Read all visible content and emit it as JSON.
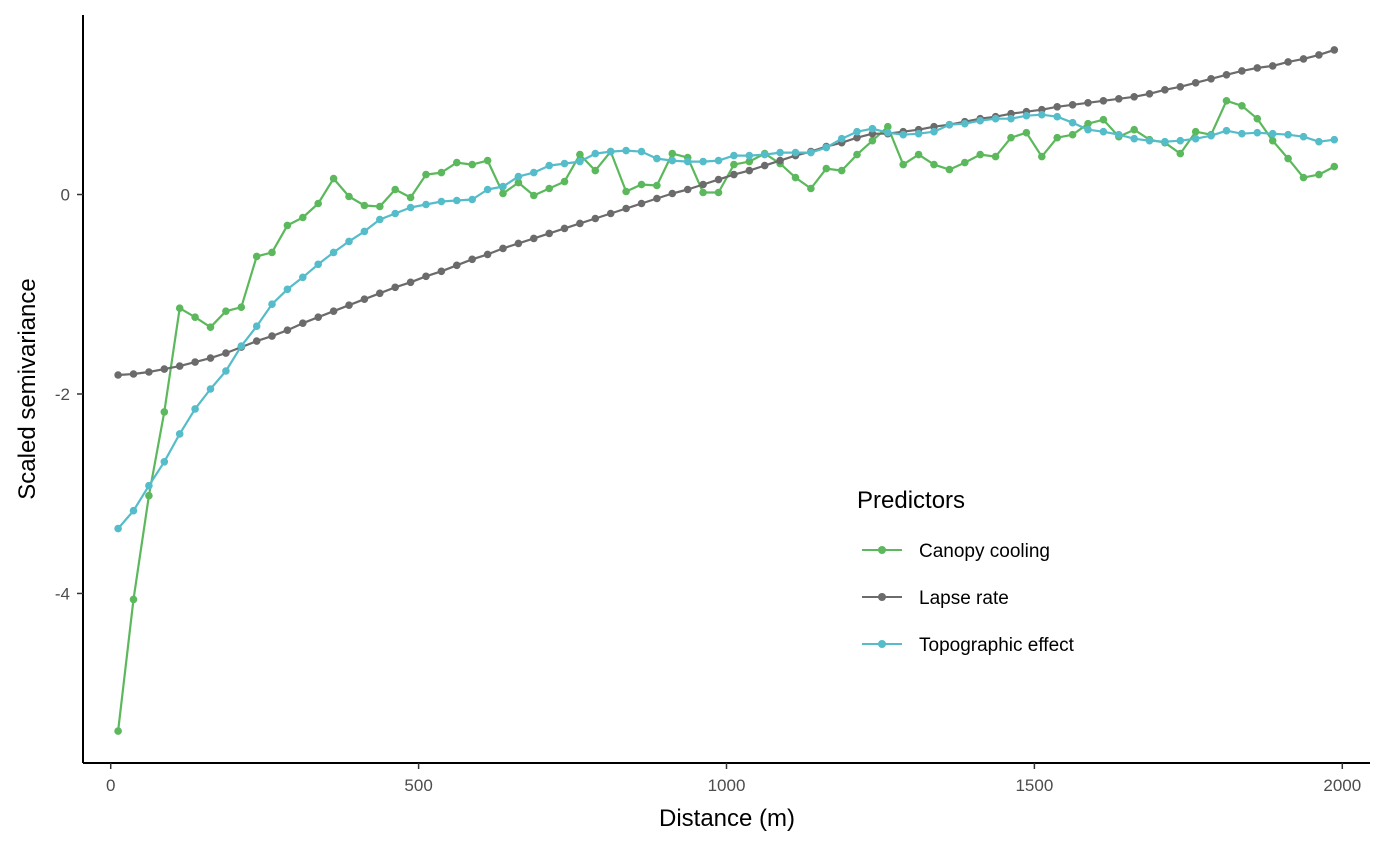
{
  "chart_data": {
    "type": "line",
    "xlabel": "Distance (m)",
    "ylabel": "Scaled semivariance",
    "xlim": [
      -45,
      2045
    ],
    "ylim": [
      -5.7,
      1.8
    ],
    "xticks": [
      0,
      500,
      1000,
      1500,
      2000
    ],
    "yticks": [
      -4,
      -2,
      0
    ],
    "grid": false,
    "legend": {
      "title": "Predictors",
      "placement": "bottom-right (inside plot)"
    },
    "colors": {
      "canopy": "#5cb85c",
      "lapse": "#6b6b6b",
      "topo": "#55bcc9"
    },
    "x": [
      12,
      37,
      62,
      87,
      112,
      137,
      162,
      187,
      212,
      237,
      262,
      287,
      312,
      337,
      362,
      387,
      412,
      437,
      462,
      487,
      512,
      537,
      562,
      587,
      612,
      637,
      662,
      687,
      712,
      737,
      762,
      787,
      812,
      837,
      862,
      887,
      912,
      937,
      962,
      987,
      1012,
      1037,
      1062,
      1087,
      1112,
      1137,
      1162,
      1187,
      1212,
      1237,
      1262,
      1287,
      1312,
      1337,
      1362,
      1387,
      1412,
      1437,
      1462,
      1487,
      1512,
      1537,
      1562,
      1587,
      1612,
      1637,
      1662,
      1687,
      1712,
      1737,
      1762,
      1787,
      1812,
      1837,
      1862,
      1887,
      1912,
      1937,
      1962,
      1987
    ],
    "series": [
      {
        "name": "Canopy cooling",
        "color": "#5cb85c",
        "values": [
          -5.38,
          -4.06,
          -3.02,
          -2.18,
          -1.14,
          -1.23,
          -1.33,
          -1.17,
          -1.13,
          -0.62,
          -0.58,
          -0.31,
          -0.23,
          -0.09,
          0.16,
          -0.02,
          -0.11,
          -0.12,
          0.05,
          -0.03,
          0.2,
          0.22,
          0.32,
          0.3,
          0.34,
          0.01,
          0.12,
          -0.01,
          0.06,
          0.13,
          0.4,
          0.24,
          0.43,
          0.03,
          0.1,
          0.09,
          0.41,
          0.37,
          0.02,
          0.02,
          0.3,
          0.33,
          0.41,
          0.31,
          0.17,
          0.06,
          0.26,
          0.24,
          0.4,
          0.54,
          0.68,
          0.3,
          0.4,
          0.3,
          0.25,
          0.32,
          0.4,
          0.38,
          0.57,
          0.62,
          0.38,
          0.57,
          0.6,
          0.71,
          0.75,
          0.58,
          0.65,
          0.55,
          0.52,
          0.41,
          0.63,
          0.6,
          0.94,
          0.89,
          0.76,
          0.54,
          0.36,
          0.17,
          0.2,
          0.28
        ]
      },
      {
        "name": "Lapse rate",
        "color": "#6b6b6b",
        "values": [
          -1.81,
          -1.8,
          -1.78,
          -1.75,
          -1.72,
          -1.68,
          -1.64,
          -1.59,
          -1.53,
          -1.47,
          -1.42,
          -1.36,
          -1.29,
          -1.23,
          -1.17,
          -1.11,
          -1.05,
          -0.99,
          -0.93,
          -0.88,
          -0.82,
          -0.77,
          -0.71,
          -0.65,
          -0.6,
          -0.54,
          -0.49,
          -0.44,
          -0.39,
          -0.34,
          -0.29,
          -0.24,
          -0.19,
          -0.14,
          -0.09,
          -0.04,
          0.01,
          0.05,
          0.1,
          0.15,
          0.2,
          0.24,
          0.29,
          0.34,
          0.39,
          0.43,
          0.48,
          0.52,
          0.57,
          0.61,
          0.61,
          0.63,
          0.65,
          0.68,
          0.7,
          0.73,
          0.76,
          0.78,
          0.81,
          0.83,
          0.85,
          0.88,
          0.9,
          0.92,
          0.94,
          0.96,
          0.98,
          1.01,
          1.05,
          1.08,
          1.12,
          1.16,
          1.2,
          1.24,
          1.27,
          1.29,
          1.33,
          1.36,
          1.4,
          1.45
        ]
      },
      {
        "name": "Topographic effect",
        "color": "#55bcc9",
        "values": [
          -3.35,
          -3.17,
          -2.92,
          -2.68,
          -2.4,
          -2.15,
          -1.95,
          -1.77,
          -1.52,
          -1.32,
          -1.1,
          -0.95,
          -0.83,
          -0.7,
          -0.58,
          -0.47,
          -0.37,
          -0.25,
          -0.19,
          -0.13,
          -0.1,
          -0.07,
          -0.06,
          -0.05,
          0.05,
          0.08,
          0.18,
          0.22,
          0.29,
          0.31,
          0.33,
          0.41,
          0.43,
          0.44,
          0.43,
          0.36,
          0.34,
          0.33,
          0.33,
          0.34,
          0.39,
          0.39,
          0.4,
          0.42,
          0.42,
          0.42,
          0.47,
          0.56,
          0.63,
          0.66,
          0.62,
          0.6,
          0.61,
          0.63,
          0.7,
          0.71,
          0.74,
          0.76,
          0.76,
          0.79,
          0.8,
          0.78,
          0.72,
          0.65,
          0.63,
          0.6,
          0.56,
          0.54,
          0.53,
          0.54,
          0.56,
          0.59,
          0.64,
          0.61,
          0.62,
          0.61,
          0.6,
          0.58,
          0.53,
          0.55
        ]
      }
    ]
  }
}
